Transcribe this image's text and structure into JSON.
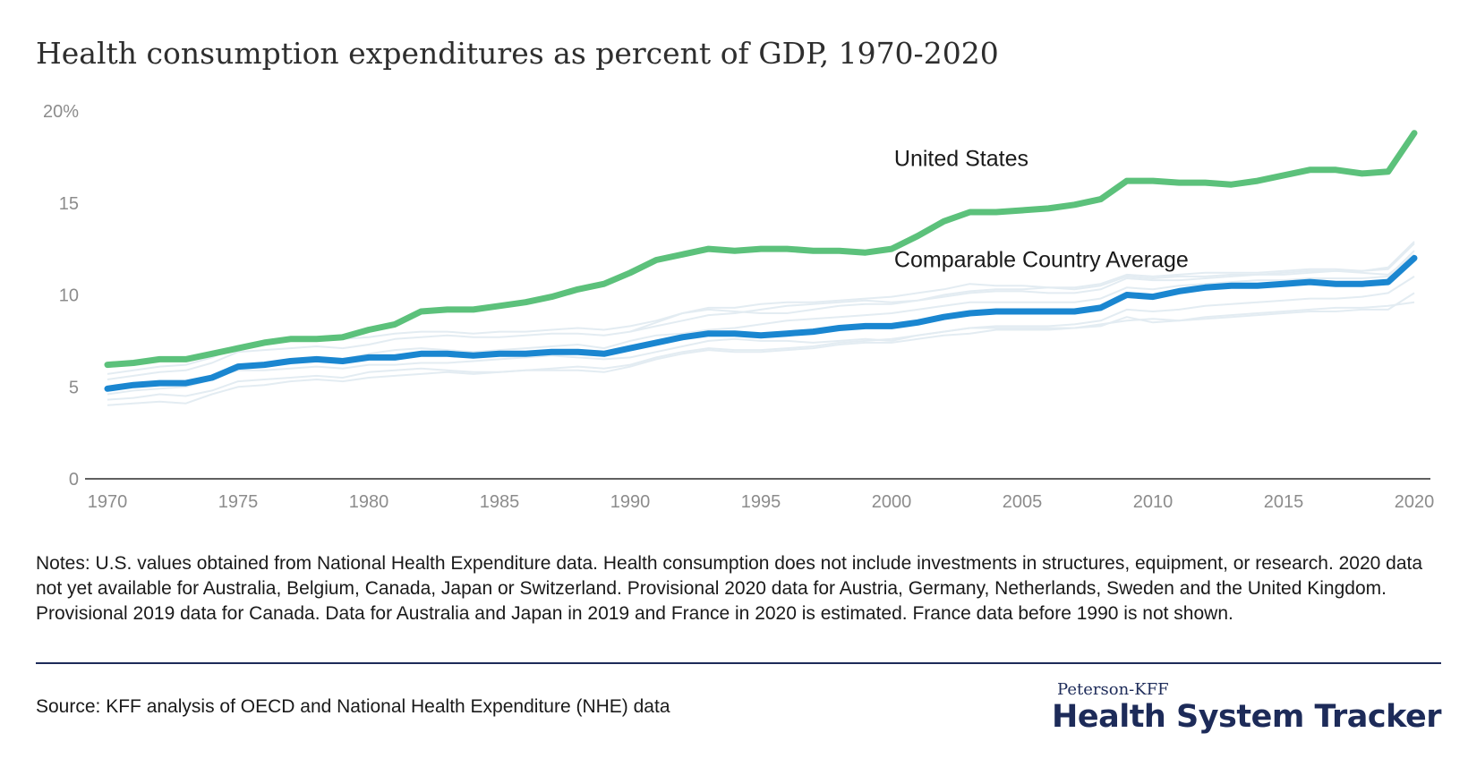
{
  "title": "Health consumption expenditures as percent of GDP, 1970-2020",
  "chart_data": {
    "type": "line",
    "title": "Health consumption expenditures as percent of GDP, 1970-2020",
    "xlim": [
      1970,
      2020
    ],
    "ylim": [
      0,
      20
    ],
    "x_ticks": [
      1970,
      1975,
      1980,
      1985,
      1990,
      1995,
      2000,
      2005,
      2010,
      2015,
      2020
    ],
    "x_tick_labels": [
      "1970",
      "1975",
      "1980",
      "1985",
      "1990",
      "1995",
      "2000",
      "2005",
      "2010",
      "2015",
      "2020"
    ],
    "y_ticks": [
      0,
      5,
      10,
      15,
      20
    ],
    "y_tick_labels": [
      "0",
      "5",
      "10",
      "15",
      "20%"
    ],
    "grid": false,
    "x": [
      1970,
      1971,
      1972,
      1973,
      1974,
      1975,
      1976,
      1977,
      1978,
      1979,
      1980,
      1981,
      1982,
      1983,
      1984,
      1985,
      1986,
      1987,
      1988,
      1989,
      1990,
      1991,
      1992,
      1993,
      1994,
      1995,
      1996,
      1997,
      1998,
      1999,
      2000,
      2001,
      2002,
      2003,
      2004,
      2005,
      2006,
      2007,
      2008,
      2009,
      2010,
      2011,
      2012,
      2013,
      2014,
      2015,
      2016,
      2017,
      2018,
      2019,
      2020
    ],
    "series": [
      {
        "name": "United States",
        "color": "#5cc17b",
        "values": [
          6.2,
          6.3,
          6.5,
          6.5,
          6.8,
          7.1,
          7.4,
          7.6,
          7.6,
          7.7,
          8.1,
          8.4,
          9.1,
          9.2,
          9.2,
          9.4,
          9.6,
          9.9,
          10.3,
          10.6,
          11.2,
          11.9,
          12.2,
          12.5,
          12.4,
          12.5,
          12.5,
          12.4,
          12.4,
          12.3,
          12.5,
          13.2,
          14.0,
          14.5,
          14.5,
          14.6,
          14.7,
          14.9,
          15.2,
          16.2,
          16.2,
          16.1,
          16.1,
          16.0,
          16.2,
          16.5,
          16.8,
          16.8,
          16.6,
          16.7,
          18.8
        ]
      },
      {
        "name": "Comparable Country Average",
        "color": "#1a86d0",
        "values": [
          4.9,
          5.1,
          5.2,
          5.2,
          5.5,
          6.1,
          6.2,
          6.4,
          6.5,
          6.4,
          6.6,
          6.6,
          6.8,
          6.8,
          6.7,
          6.8,
          6.8,
          6.9,
          6.9,
          6.8,
          7.1,
          7.4,
          7.7,
          7.9,
          7.9,
          7.8,
          7.9,
          8.0,
          8.2,
          8.3,
          8.3,
          8.5,
          8.8,
          9.0,
          9.1,
          9.1,
          9.1,
          9.1,
          9.3,
          10.0,
          9.9,
          10.2,
          10.4,
          10.5,
          10.5,
          10.6,
          10.7,
          10.6,
          10.6,
          10.7,
          12.0
        ]
      }
    ],
    "background_series_color": "#e3ecf2",
    "background_series": [
      [
        4.0,
        4.1,
        4.2,
        4.1,
        4.6,
        5.0,
        5.1,
        5.3,
        5.4,
        5.3,
        5.5,
        5.6,
        5.7,
        5.8,
        5.7,
        5.8,
        5.9,
        6.0,
        6.1,
        6.0,
        6.2,
        6.6,
        6.9,
        7.1,
        7.0,
        7.0,
        7.1,
        7.2,
        7.4,
        7.5,
        7.6,
        7.8,
        8.0,
        8.2,
        8.3,
        8.3,
        8.3,
        8.4,
        8.6,
        9.2,
        9.1,
        9.2,
        9.4,
        9.5,
        9.6,
        9.7,
        9.8,
        9.8,
        9.9,
        10.1,
        11.0
      ],
      [
        5.4,
        5.6,
        5.8,
        5.9,
        6.3,
        6.9,
        7.0,
        7.1,
        7.2,
        7.1,
        7.3,
        7.6,
        7.7,
        7.8,
        7.7,
        7.7,
        7.8,
        7.9,
        7.9,
        7.8,
        8.0,
        8.5,
        9.0,
        9.2,
        9.1,
        9.0,
        9.0,
        9.2,
        9.4,
        9.5,
        9.5,
        9.7,
        10.0,
        10.2,
        10.3,
        10.3,
        10.4,
        10.4,
        10.6,
        11.1,
        11.0,
        11.1,
        11.2,
        11.2,
        11.2,
        11.3,
        11.4,
        11.4,
        11.3,
        11.4,
        12.8
      ],
      [
        4.6,
        4.8,
        4.9,
        5.0,
        5.4,
        6.0,
        6.2,
        6.3,
        6.5,
        6.5,
        6.8,
        7.0,
        7.1,
        7.0,
        6.9,
        7.0,
        7.1,
        7.2,
        7.3,
        7.1,
        7.5,
        7.8,
        7.9,
        8.1,
        8.2,
        8.4,
        8.6,
        8.7,
        8.8,
        8.9,
        9.0,
        9.2,
        9.4,
        9.6,
        9.6,
        9.6,
        9.6,
        9.6,
        9.8,
        10.4,
        10.3,
        10.5,
        10.6,
        10.7,
        10.8,
        10.8,
        10.9,
        10.9,
        10.9,
        11.0,
        12.4
      ],
      [
        5.0,
        5.2,
        5.3,
        5.3,
        5.5,
        5.9,
        5.9,
        6.0,
        6.1,
        6.0,
        6.2,
        6.2,
        6.3,
        6.3,
        6.4,
        6.5,
        6.6,
        6.7,
        6.6,
        6.5,
        6.6,
        6.9,
        7.2,
        7.5,
        7.6,
        7.5,
        7.5,
        7.4,
        7.5,
        7.6,
        7.5,
        7.8,
        8.0,
        8.2,
        8.2,
        8.2,
        8.2,
        8.2,
        8.4,
        8.6,
        8.7,
        8.6,
        8.8,
        8.9,
        9.0,
        9.1,
        9.2,
        9.3,
        9.3,
        9.4,
        9.6
      ],
      [
        4.3,
        4.4,
        4.6,
        4.5,
        4.8,
        5.3,
        5.4,
        5.5,
        5.6,
        5.5,
        5.8,
        5.9,
        6.0,
        5.9,
        5.8,
        5.8,
        5.9,
        5.9,
        5.9,
        5.8,
        6.1,
        6.5,
        6.8,
        7.0,
        6.9,
        6.9,
        7.0,
        7.1,
        7.3,
        7.4,
        7.4,
        7.6,
        7.8,
        7.9,
        8.1,
        8.1,
        8.1,
        8.2,
        8.3,
        8.8,
        8.5,
        8.6,
        8.7,
        8.8,
        8.9,
        9.0,
        9.1,
        9.1,
        9.2,
        9.2,
        10.1
      ],
      [
        5.7,
        5.9,
        6.1,
        6.2,
        6.6,
        7.2,
        7.5,
        7.6,
        7.7,
        7.6,
        7.7,
        7.9,
        8.0,
        8.0,
        7.9,
        8.0,
        8.0,
        8.1,
        8.2,
        8.1,
        8.3,
        8.6,
        9.0,
        9.3,
        9.3,
        9.5,
        9.6,
        9.6,
        9.7,
        9.8,
        9.9,
        10.1,
        10.3,
        10.6,
        10.5,
        10.5,
        10.4,
        10.3,
        10.5,
        11.0,
        10.9,
        11.0,
        11.0,
        11.1,
        11.1,
        11.2,
        11.3,
        11.3,
        11.3,
        11.5,
        12.9
      ],
      [
        null,
        null,
        null,
        null,
        null,
        null,
        null,
        null,
        null,
        null,
        null,
        null,
        null,
        null,
        null,
        null,
        null,
        null,
        null,
        null,
        8.0,
        8.3,
        8.6,
        8.9,
        9.0,
        9.2,
        9.4,
        9.5,
        9.6,
        9.7,
        9.6,
        9.7,
        9.9,
        10.1,
        10.2,
        10.2,
        10.1,
        10.1,
        10.3,
        10.9,
        10.8,
        10.8,
        10.9,
        11.0,
        11.1,
        11.1,
        11.2,
        11.3,
        11.2,
        11.1,
        12.2
      ]
    ],
    "annotations": [
      {
        "text": "United States",
        "x": 2000.1,
        "y": 17.0
      },
      {
        "text": "Comparable Country Average",
        "x": 2000.1,
        "y": 11.5
      }
    ]
  },
  "notes": "Notes: U.S. values obtained from National Health Expenditure data. Health consumption does not include investments in structures, equipment, or research. 2020 data not yet available for Australia, Belgium, Canada, Japan or Switzerland. Provisional 2020 data for Austria, Germany, Netherlands, Sweden and the United Kingdom. Provisional 2019 data for Canada. Data for Australia and Japan in 2019 and France in 2020 is estimated. France data before 1990 is not shown.",
  "source": "Source: KFF analysis of OECD and National Health Expenditure (NHE) data",
  "brand": {
    "small": "Peterson-KFF",
    "big": "Health System Tracker"
  }
}
